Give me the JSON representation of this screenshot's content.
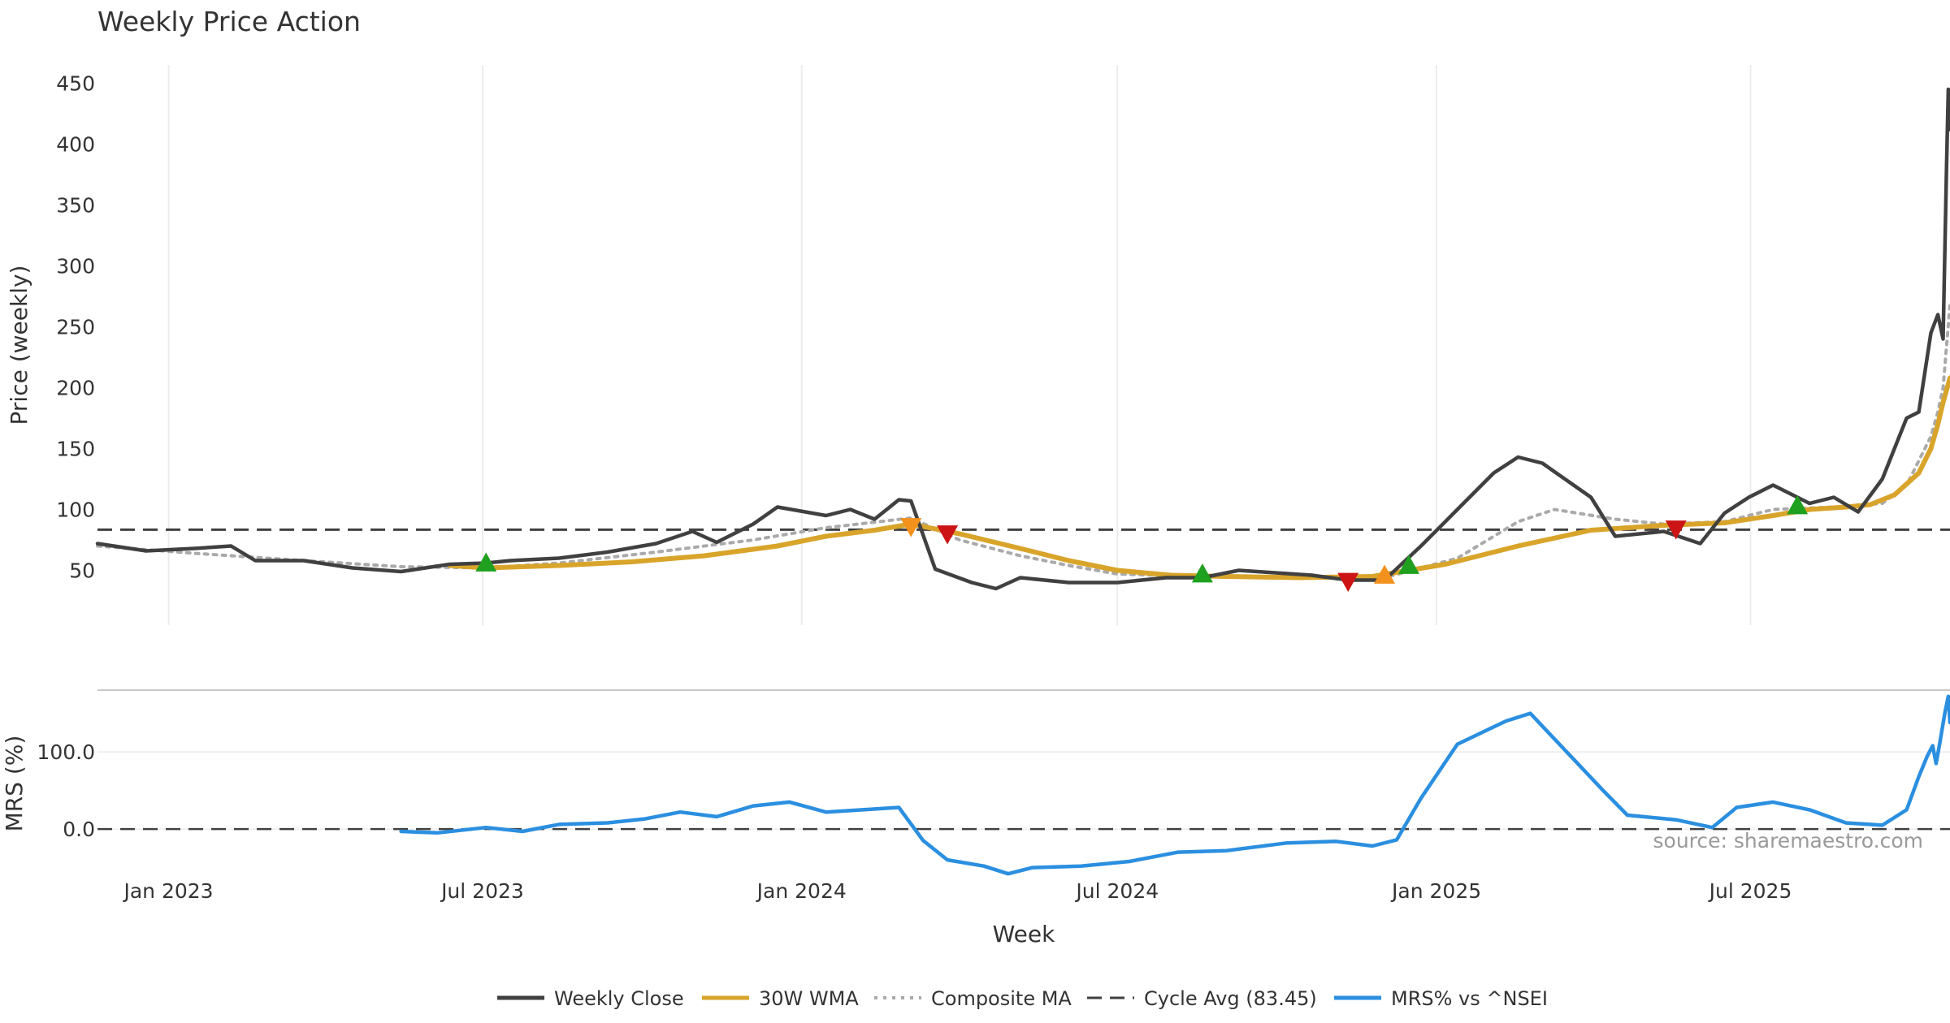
{
  "chart_data": {
    "type": "line",
    "title": "Weekly Price Action",
    "xlabel": "Week",
    "x_ticks": [
      "Jan 2023",
      "Jul 2023",
      "Jan 2024",
      "Jul 2024",
      "Jan 2025",
      "Jul 2025"
    ],
    "x_range": [
      "2022-11-21",
      "2025-10-24"
    ],
    "price_panel": {
      "ylabel": "Price (weekly)",
      "yticks": [
        50,
        100,
        150,
        200,
        250,
        300,
        350,
        400,
        450
      ],
      "ylim": [
        5,
        465
      ],
      "cycle_avg": 83.45,
      "series": [
        {
          "name": "Weekly Close",
          "color": "#404040",
          "style": "solid",
          "points": [
            [
              "2022-11-21",
              72
            ],
            [
              "2022-12-19",
              66
            ],
            [
              "2023-01-16",
              68
            ],
            [
              "2023-02-06",
              70
            ],
            [
              "2023-02-20",
              58
            ],
            [
              "2023-03-20",
              58
            ],
            [
              "2023-04-17",
              52
            ],
            [
              "2023-05-15",
              49
            ],
            [
              "2023-06-12",
              55
            ],
            [
              "2023-07-03",
              56
            ],
            [
              "2023-07-17",
              58
            ],
            [
              "2023-08-14",
              60
            ],
            [
              "2023-09-11",
              65
            ],
            [
              "2023-10-09",
              72
            ],
            [
              "2023-10-30",
              82
            ],
            [
              "2023-11-13",
              73
            ],
            [
              "2023-12-04",
              88
            ],
            [
              "2023-12-18",
              102
            ],
            [
              "2024-01-15",
              95
            ],
            [
              "2024-01-29",
              100
            ],
            [
              "2024-02-12",
              92
            ],
            [
              "2024-02-26",
              108
            ],
            [
              "2024-03-04",
              107
            ],
            [
              "2024-03-18",
              51
            ],
            [
              "2024-04-08",
              40
            ],
            [
              "2024-04-22",
              35
            ],
            [
              "2024-05-06",
              44
            ],
            [
              "2024-06-03",
              40
            ],
            [
              "2024-07-01",
              40
            ],
            [
              "2024-07-29",
              44
            ],
            [
              "2024-08-19",
              44
            ],
            [
              "2024-09-09",
              50
            ],
            [
              "2024-09-30",
              48
            ],
            [
              "2024-10-21",
              46
            ],
            [
              "2024-11-11",
              42
            ],
            [
              "2024-12-02",
              42
            ],
            [
              "2024-12-23",
              70
            ],
            [
              "2025-01-13",
              100
            ],
            [
              "2025-02-03",
              130
            ],
            [
              "2025-02-17",
              143
            ],
            [
              "2025-03-03",
              138
            ],
            [
              "2025-03-31",
              110
            ],
            [
              "2025-04-14",
              78
            ],
            [
              "2025-05-12",
              82
            ],
            [
              "2025-06-02",
              72
            ],
            [
              "2025-06-16",
              97
            ],
            [
              "2025-06-30",
              110
            ],
            [
              "2025-07-14",
              120
            ],
            [
              "2025-08-04",
              105
            ],
            [
              "2025-08-18",
              110
            ],
            [
              "2025-09-01",
              98
            ],
            [
              "2025-09-15",
              125
            ],
            [
              "2025-09-29",
              175
            ],
            [
              "2025-10-06",
              180
            ],
            [
              "2025-10-13",
              245
            ],
            [
              "2025-10-17",
              260
            ],
            [
              "2025-10-20",
              240
            ],
            [
              "2025-10-22",
              380
            ],
            [
              "2025-10-23",
              445
            ],
            [
              "2025-10-24",
              412
            ]
          ]
        },
        {
          "name": "30W WMA",
          "color": "#d9a42a",
          "style": "solid",
          "points": [
            [
              "2023-06-12",
              54
            ],
            [
              "2023-07-03",
              52
            ],
            [
              "2023-08-14",
              54
            ],
            [
              "2023-09-25",
              57
            ],
            [
              "2023-11-06",
              62
            ],
            [
              "2023-12-18",
              70
            ],
            [
              "2024-01-15",
              78
            ],
            [
              "2024-02-12",
              83
            ],
            [
              "2024-03-04",
              88
            ],
            [
              "2024-04-01",
              80
            ],
            [
              "2024-05-06",
              68
            ],
            [
              "2024-06-03",
              58
            ],
            [
              "2024-07-01",
              50
            ],
            [
              "2024-08-01",
              46
            ],
            [
              "2024-09-01",
              45
            ],
            [
              "2024-10-14",
              44
            ],
            [
              "2024-11-25",
              45
            ],
            [
              "2025-01-06",
              55
            ],
            [
              "2025-02-17",
              70
            ],
            [
              "2025-03-31",
              83
            ],
            [
              "2025-05-12",
              87
            ],
            [
              "2025-06-16",
              89
            ],
            [
              "2025-07-14",
              95
            ],
            [
              "2025-08-04",
              100
            ],
            [
              "2025-08-25",
              102
            ],
            [
              "2025-09-08",
              104
            ],
            [
              "2025-09-22",
              112
            ],
            [
              "2025-10-06",
              130
            ],
            [
              "2025-10-13",
              150
            ],
            [
              "2025-10-17",
              170
            ],
            [
              "2025-10-20",
              188
            ],
            [
              "2025-10-24",
              208
            ]
          ]
        },
        {
          "name": "Composite MA",
          "color": "#aaaaaa",
          "style": "dotted",
          "points": [
            [
              "2022-11-21",
              70
            ],
            [
              "2023-01-16",
              64
            ],
            [
              "2023-03-20",
              58
            ],
            [
              "2023-05-15",
              53
            ],
            [
              "2023-07-03",
              52
            ],
            [
              "2023-08-14",
              56
            ],
            [
              "2023-10-09",
              65
            ],
            [
              "2023-12-04",
              75
            ],
            [
              "2024-01-15",
              85
            ],
            [
              "2024-03-04",
              93
            ],
            [
              "2024-04-01",
              75
            ],
            [
              "2024-05-06",
              62
            ],
            [
              "2024-06-03",
              54
            ],
            [
              "2024-07-01",
              47
            ],
            [
              "2024-08-19",
              45
            ],
            [
              "2024-10-21",
              45
            ],
            [
              "2024-12-02",
              44
            ],
            [
              "2025-01-13",
              60
            ],
            [
              "2025-02-17",
              90
            ],
            [
              "2025-03-10",
              100
            ],
            [
              "2025-04-14",
              92
            ],
            [
              "2025-05-12",
              88
            ],
            [
              "2025-06-16",
              90
            ],
            [
              "2025-07-14",
              100
            ],
            [
              "2025-08-18",
              102
            ],
            [
              "2025-09-15",
              105
            ],
            [
              "2025-09-29",
              120
            ],
            [
              "2025-10-06",
              140
            ],
            [
              "2025-10-13",
              160
            ],
            [
              "2025-10-17",
              180
            ],
            [
              "2025-10-20",
              200
            ],
            [
              "2025-10-24",
              268
            ]
          ]
        }
      ],
      "cycle_avg_label": "Cycle Avg (83.45)",
      "markers": [
        {
          "date": "2023-07-03",
          "value": 56,
          "shape": "triangle-up",
          "color": "#1fa01f"
        },
        {
          "date": "2024-03-04",
          "value": 86,
          "shape": "triangle-down",
          "color": "#f2911b"
        },
        {
          "date": "2024-03-25",
          "value": 80,
          "shape": "triangle-down",
          "color": "#cc1414"
        },
        {
          "date": "2024-08-19",
          "value": 47,
          "shape": "triangle-up",
          "color": "#1fa01f"
        },
        {
          "date": "2024-11-11",
          "value": 41,
          "shape": "triangle-down",
          "color": "#cc1414"
        },
        {
          "date": "2024-12-02",
          "value": 46,
          "shape": "triangle-up",
          "color": "#f2911b"
        },
        {
          "date": "2024-12-16",
          "value": 54,
          "shape": "triangle-up",
          "color": "#1fa01f"
        },
        {
          "date": "2025-05-19",
          "value": 84,
          "shape": "triangle-down",
          "color": "#cc1414"
        },
        {
          "date": "2025-07-28",
          "value": 103,
          "shape": "triangle-up",
          "color": "#1fa01f"
        }
      ]
    },
    "mrs_panel": {
      "ylabel": "MRS (%)",
      "yticks": [
        "0.0",
        "100.0"
      ],
      "ylim": [
        -62,
        178
      ],
      "series": [
        {
          "name": "MRS% vs ^NSEI",
          "color": "#2b8fe0",
          "style": "solid",
          "points": [
            [
              "2023-05-15",
              -3
            ],
            [
              "2023-06-05",
              -5
            ],
            [
              "2023-07-03",
              2
            ],
            [
              "2023-07-24",
              -3
            ],
            [
              "2023-08-14",
              6
            ],
            [
              "2023-09-11",
              8
            ],
            [
              "2023-10-02",
              13
            ],
            [
              "2023-10-23",
              22
            ],
            [
              "2023-11-13",
              16
            ],
            [
              "2023-12-04",
              30
            ],
            [
              "2023-12-25",
              35
            ],
            [
              "2024-01-15",
              22
            ],
            [
              "2024-02-05",
              25
            ],
            [
              "2024-02-26",
              28
            ],
            [
              "2024-03-11",
              -15
            ],
            [
              "2024-03-25",
              -40
            ],
            [
              "2024-04-15",
              -48
            ],
            [
              "2024-04-29",
              -58
            ],
            [
              "2024-05-13",
              -50
            ],
            [
              "2024-06-10",
              -48
            ],
            [
              "2024-07-08",
              -42
            ],
            [
              "2024-08-05",
              -30
            ],
            [
              "2024-09-02",
              -28
            ],
            [
              "2024-10-07",
              -18
            ],
            [
              "2024-11-04",
              -16
            ],
            [
              "2024-11-25",
              -22
            ],
            [
              "2024-12-09",
              -14
            ],
            [
              "2024-12-23",
              40
            ],
            [
              "2025-01-13",
              110
            ],
            [
              "2025-02-10",
              140
            ],
            [
              "2025-02-24",
              150
            ],
            [
              "2025-03-17",
              100
            ],
            [
              "2025-04-07",
              50
            ],
            [
              "2025-04-21",
              18
            ],
            [
              "2025-05-19",
              12
            ],
            [
              "2025-06-09",
              2
            ],
            [
              "2025-06-23",
              28
            ],
            [
              "2025-07-14",
              35
            ],
            [
              "2025-08-04",
              25
            ],
            [
              "2025-08-25",
              8
            ],
            [
              "2025-09-15",
              5
            ],
            [
              "2025-09-29",
              25
            ],
            [
              "2025-10-06",
              68
            ],
            [
              "2025-10-11",
              95
            ],
            [
              "2025-10-14",
              108
            ],
            [
              "2025-10-16",
              85
            ],
            [
              "2025-10-18",
              110
            ],
            [
              "2025-10-21",
              150
            ],
            [
              "2025-10-23",
              172
            ],
            [
              "2025-10-24",
              138
            ]
          ]
        }
      ],
      "zero_line": 0
    },
    "legend": {
      "placement": "bottom-center",
      "entries": [
        {
          "label": "Weekly Close",
          "color": "#404040",
          "style": "solid"
        },
        {
          "label": "30W WMA",
          "color": "#d9a42a",
          "style": "solid"
        },
        {
          "label": "Composite MA",
          "color": "#aaaaaa",
          "style": "dotted"
        },
        {
          "label": "Cycle Avg (83.45)",
          "color": "#404040",
          "style": "dashed"
        },
        {
          "label": "MRS% vs ^NSEI",
          "color": "#2b8fe0",
          "style": "solid"
        }
      ]
    },
    "annotation": "source: sharemaestro.com",
    "grid": "vertical-only"
  }
}
